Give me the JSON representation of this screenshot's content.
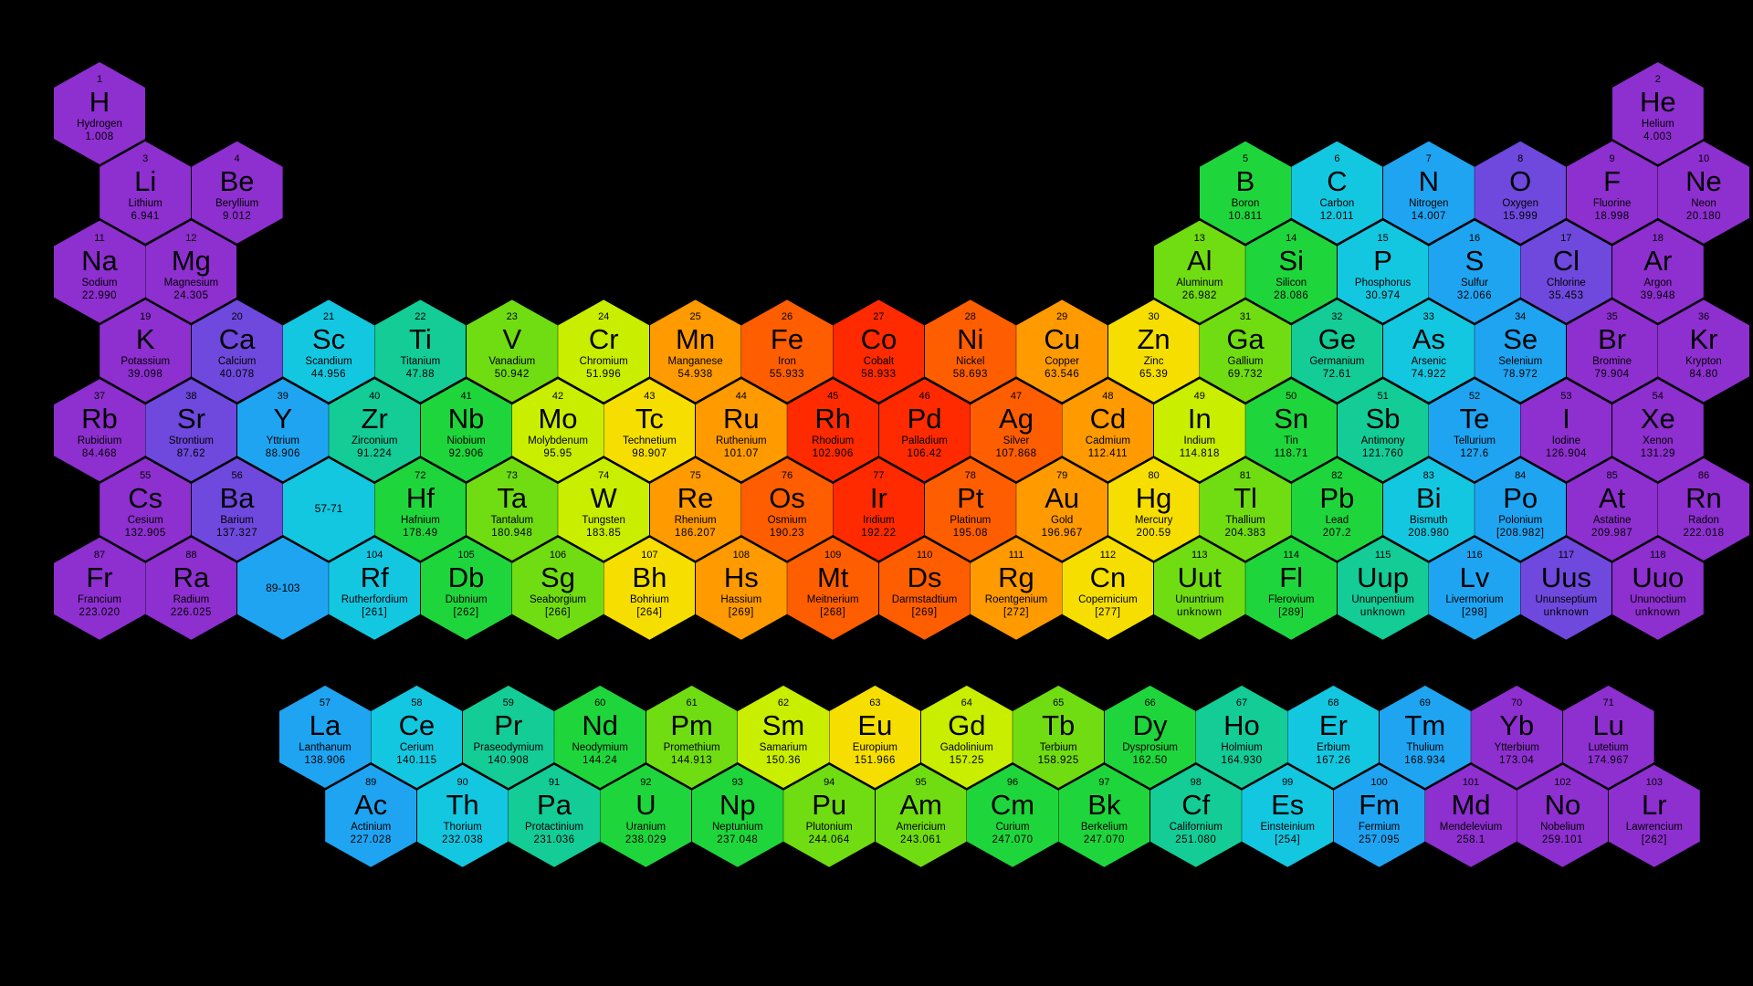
{
  "palette": [
    "#8e2fd0",
    "#6f48dd",
    "#1fa4f2",
    "#14c7e0",
    "#13cc96",
    "#1fd53c",
    "#70dc12",
    "#c9ee00",
    "#f6df00",
    "#ff9a00",
    "#ff5e00",
    "#ff2a00"
  ],
  "main_rows": [
    {
      "offset": 0,
      "cells": [
        {
          "n": "1",
          "s": "H",
          "name": "Hydrogen",
          "m": "1.008",
          "c": 0
        },
        {
          "gap": 16
        },
        {
          "n": "2",
          "s": "He",
          "name": "Helium",
          "m": "4.003",
          "c": 0
        }
      ]
    },
    {
      "offset": 1,
      "cells": [
        {
          "n": "3",
          "s": "Li",
          "name": "Lithium",
          "m": "6.941",
          "c": 0
        },
        {
          "n": "4",
          "s": "Be",
          "name": "Beryllium",
          "m": "9.012",
          "c": 0
        },
        {
          "gap": 10
        },
        {
          "n": "5",
          "s": "B",
          "name": "Boron",
          "m": "10.811",
          "c": 5
        },
        {
          "n": "6",
          "s": "C",
          "name": "Carbon",
          "m": "12.011",
          "c": 3
        },
        {
          "n": "7",
          "s": "N",
          "name": "Nitrogen",
          "m": "14.007",
          "c": 2
        },
        {
          "n": "8",
          "s": "O",
          "name": "Oxygen",
          "m": "15.999",
          "c": 1
        },
        {
          "n": "9",
          "s": "F",
          "name": "Fluorine",
          "m": "18.998",
          "c": 0
        },
        {
          "n": "10",
          "s": "Ne",
          "name": "Neon",
          "m": "20.180",
          "c": 0
        }
      ]
    },
    {
      "offset": 0,
      "cells": [
        {
          "n": "11",
          "s": "Na",
          "name": "Sodium",
          "m": "22.990",
          "c": 0
        },
        {
          "n": "12",
          "s": "Mg",
          "name": "Magnesium",
          "m": "24.305",
          "c": 0
        },
        {
          "gap": 10
        },
        {
          "n": "13",
          "s": "Al",
          "name": "Aluminum",
          "m": "26.982",
          "c": 6
        },
        {
          "n": "14",
          "s": "Si",
          "name": "Silicon",
          "m": "28.086",
          "c": 5
        },
        {
          "n": "15",
          "s": "P",
          "name": "Phosphorus",
          "m": "30.974",
          "c": 3
        },
        {
          "n": "16",
          "s": "S",
          "name": "Sulfur",
          "m": "32.066",
          "c": 2
        },
        {
          "n": "17",
          "s": "Cl",
          "name": "Chlorine",
          "m": "35.453",
          "c": 1
        },
        {
          "n": "18",
          "s": "Ar",
          "name": "Argon",
          "m": "39.948",
          "c": 0
        }
      ]
    },
    {
      "offset": 1,
      "cells": [
        {
          "n": "19",
          "s": "K",
          "name": "Potassium",
          "m": "39.098",
          "c": 0
        },
        {
          "n": "20",
          "s": "Ca",
          "name": "Calcium",
          "m": "40.078",
          "c": 1
        },
        {
          "n": "21",
          "s": "Sc",
          "name": "Scandium",
          "m": "44.956",
          "c": 3
        },
        {
          "n": "22",
          "s": "Ti",
          "name": "Titanium",
          "m": "47.88",
          "c": 4
        },
        {
          "n": "23",
          "s": "V",
          "name": "Vanadium",
          "m": "50.942",
          "c": 6
        },
        {
          "n": "24",
          "s": "Cr",
          "name": "Chromium",
          "m": "51.996",
          "c": 7
        },
        {
          "n": "25",
          "s": "Mn",
          "name": "Manganese",
          "m": "54.938",
          "c": 9
        },
        {
          "n": "26",
          "s": "Fe",
          "name": "Iron",
          "m": "55.933",
          "c": 10
        },
        {
          "n": "27",
          "s": "Co",
          "name": "Cobalt",
          "m": "58.933",
          "c": 11
        },
        {
          "n": "28",
          "s": "Ni",
          "name": "Nickel",
          "m": "58.693",
          "c": 10
        },
        {
          "n": "29",
          "s": "Cu",
          "name": "Copper",
          "m": "63.546",
          "c": 9
        },
        {
          "n": "30",
          "s": "Zn",
          "name": "Zinc",
          "m": "65.39",
          "c": 8
        },
        {
          "n": "31",
          "s": "Ga",
          "name": "Gallium",
          "m": "69.732",
          "c": 6
        },
        {
          "n": "32",
          "s": "Ge",
          "name": "Germanium",
          "m": "72.61",
          "c": 4
        },
        {
          "n": "33",
          "s": "As",
          "name": "Arsenic",
          "m": "74.922",
          "c": 3
        },
        {
          "n": "34",
          "s": "Se",
          "name": "Selenium",
          "m": "78.972",
          "c": 2
        },
        {
          "n": "35",
          "s": "Br",
          "name": "Bromine",
          "m": "79.904",
          "c": 0
        },
        {
          "n": "36",
          "s": "Kr",
          "name": "Krypton",
          "m": "84.80",
          "c": 0
        }
      ]
    },
    {
      "offset": 0,
      "cells": [
        {
          "n": "37",
          "s": "Rb",
          "name": "Rubidium",
          "m": "84.468",
          "c": 0
        },
        {
          "n": "38",
          "s": "Sr",
          "name": "Strontium",
          "m": "87.62",
          "c": 1
        },
        {
          "n": "39",
          "s": "Y",
          "name": "Yttrium",
          "m": "88.906",
          "c": 2
        },
        {
          "n": "40",
          "s": "Zr",
          "name": "Zirconium",
          "m": "91.224",
          "c": 4
        },
        {
          "n": "41",
          "s": "Nb",
          "name": "Niobium",
          "m": "92.906",
          "c": 5
        },
        {
          "n": "42",
          "s": "Mo",
          "name": "Molybdenum",
          "m": "95.95",
          "c": 7
        },
        {
          "n": "43",
          "s": "Tc",
          "name": "Technetium",
          "m": "98.907",
          "c": 8
        },
        {
          "n": "44",
          "s": "Ru",
          "name": "Ruthenium",
          "m": "101.07",
          "c": 9
        },
        {
          "n": "45",
          "s": "Rh",
          "name": "Rhodium",
          "m": "102.906",
          "c": 11
        },
        {
          "n": "46",
          "s": "Pd",
          "name": "Palladium",
          "m": "106.42",
          "c": 11
        },
        {
          "n": "47",
          "s": "Ag",
          "name": "Silver",
          "m": "107.868",
          "c": 10
        },
        {
          "n": "48",
          "s": "Cd",
          "name": "Cadmium",
          "m": "112.411",
          "c": 9
        },
        {
          "n": "49",
          "s": "In",
          "name": "Indium",
          "m": "114.818",
          "c": 7
        },
        {
          "n": "50",
          "s": "Sn",
          "name": "Tin",
          "m": "118.71",
          "c": 5
        },
        {
          "n": "51",
          "s": "Sb",
          "name": "Antimony",
          "m": "121.760",
          "c": 4
        },
        {
          "n": "52",
          "s": "Te",
          "name": "Tellurium",
          "m": "127.6",
          "c": 2
        },
        {
          "n": "53",
          "s": "I",
          "name": "Iodine",
          "m": "126.904",
          "c": 0
        },
        {
          "n": "54",
          "s": "Xe",
          "name": "Xenon",
          "m": "131.29",
          "c": 0
        }
      ]
    },
    {
      "offset": 1,
      "cells": [
        {
          "n": "55",
          "s": "Cs",
          "name": "Cesium",
          "m": "132.905",
          "c": 0
        },
        {
          "n": "56",
          "s": "Ba",
          "name": "Barium",
          "m": "137.327",
          "c": 1
        },
        {
          "label": "57-71",
          "c": 3
        },
        {
          "n": "72",
          "s": "Hf",
          "name": "Hafnium",
          "m": "178.49",
          "c": 5
        },
        {
          "n": "73",
          "s": "Ta",
          "name": "Tantalum",
          "m": "180.948",
          "c": 6
        },
        {
          "n": "74",
          "s": "W",
          "name": "Tungsten",
          "m": "183.85",
          "c": 7
        },
        {
          "n": "75",
          "s": "Re",
          "name": "Rhenium",
          "m": "186.207",
          "c": 9
        },
        {
          "n": "76",
          "s": "Os",
          "name": "Osmium",
          "m": "190.23",
          "c": 10
        },
        {
          "n": "77",
          "s": "Ir",
          "name": "Iridium",
          "m": "192.22",
          "c": 11
        },
        {
          "n": "78",
          "s": "Pt",
          "name": "Platinum",
          "m": "195.08",
          "c": 10
        },
        {
          "n": "79",
          "s": "Au",
          "name": "Gold",
          "m": "196.967",
          "c": 9
        },
        {
          "n": "80",
          "s": "Hg",
          "name": "Mercury",
          "m": "200.59",
          "c": 8
        },
        {
          "n": "81",
          "s": "Tl",
          "name": "Thallium",
          "m": "204.383",
          "c": 6
        },
        {
          "n": "82",
          "s": "Pb",
          "name": "Lead",
          "m": "207.2",
          "c": 5
        },
        {
          "n": "83",
          "s": "Bi",
          "name": "Bismuth",
          "m": "208.980",
          "c": 3
        },
        {
          "n": "84",
          "s": "Po",
          "name": "Polonium",
          "m": "[208.982]",
          "c": 2
        },
        {
          "n": "85",
          "s": "At",
          "name": "Astatine",
          "m": "209.987",
          "c": 0
        },
        {
          "n": "86",
          "s": "Rn",
          "name": "Radon",
          "m": "222.018",
          "c": 0
        }
      ]
    },
    {
      "offset": 0,
      "cells": [
        {
          "n": "87",
          "s": "Fr",
          "name": "Francium",
          "m": "223.020",
          "c": 0
        },
        {
          "n": "88",
          "s": "Ra",
          "name": "Radium",
          "m": "226.025",
          "c": 0
        },
        {
          "label": "89-103",
          "c": 2
        },
        {
          "n": "104",
          "s": "Rf",
          "name": "Rutherfordium",
          "m": "[261]",
          "c": 3
        },
        {
          "n": "105",
          "s": "Db",
          "name": "Dubnium",
          "m": "[262]",
          "c": 5
        },
        {
          "n": "106",
          "s": "Sg",
          "name": "Seaborgium",
          "m": "[266]",
          "c": 6
        },
        {
          "n": "107",
          "s": "Bh",
          "name": "Bohrium",
          "m": "[264]",
          "c": 8
        },
        {
          "n": "108",
          "s": "Hs",
          "name": "Hassium",
          "m": "[269]",
          "c": 9
        },
        {
          "n": "109",
          "s": "Mt",
          "name": "Meitnerium",
          "m": "[268]",
          "c": 10
        },
        {
          "n": "110",
          "s": "Ds",
          "name": "Darmstadtium",
          "m": "[269]",
          "c": 10
        },
        {
          "n": "111",
          "s": "Rg",
          "name": "Roentgenium",
          "m": "[272]",
          "c": 9
        },
        {
          "n": "112",
          "s": "Cn",
          "name": "Copernicium",
          "m": "[277]",
          "c": 8
        },
        {
          "n": "113",
          "s": "Uut",
          "name": "Ununtrium",
          "m": "unknown",
          "c": 6
        },
        {
          "n": "114",
          "s": "Fl",
          "name": "Flerovium",
          "m": "[289]",
          "c": 5
        },
        {
          "n": "115",
          "s": "Uup",
          "name": "Ununpentium",
          "m": "unknown",
          "c": 4
        },
        {
          "n": "116",
          "s": "Lv",
          "name": "Livermorium",
          "m": "[298]",
          "c": 2
        },
        {
          "n": "117",
          "s": "Uus",
          "name": "Ununseptium",
          "m": "unknown",
          "c": 1
        },
        {
          "n": "118",
          "s": "Uuo",
          "name": "Ununoctium",
          "m": "unknown",
          "c": 0
        }
      ]
    }
  ],
  "f_rows": [
    {
      "offset": 0,
      "cells": [
        {
          "n": "57",
          "s": "La",
          "name": "Lanthanum",
          "m": "138.906",
          "c": 2
        },
        {
          "n": "58",
          "s": "Ce",
          "name": "Cerium",
          "m": "140.115",
          "c": 3
        },
        {
          "n": "59",
          "s": "Pr",
          "name": "Praseodymium",
          "m": "140.908",
          "c": 4
        },
        {
          "n": "60",
          "s": "Nd",
          "name": "Neodymium",
          "m": "144.24",
          "c": 5
        },
        {
          "n": "61",
          "s": "Pm",
          "name": "Promethium",
          "m": "144.913",
          "c": 6
        },
        {
          "n": "62",
          "s": "Sm",
          "name": "Samarium",
          "m": "150.36",
          "c": 7
        },
        {
          "n": "63",
          "s": "Eu",
          "name": "Europium",
          "m": "151.966",
          "c": 8
        },
        {
          "n": "64",
          "s": "Gd",
          "name": "Gadolinium",
          "m": "157.25",
          "c": 7
        },
        {
          "n": "65",
          "s": "Tb",
          "name": "Terbium",
          "m": "158.925",
          "c": 6
        },
        {
          "n": "66",
          "s": "Dy",
          "name": "Dysprosium",
          "m": "162.50",
          "c": 5
        },
        {
          "n": "67",
          "s": "Ho",
          "name": "Holmium",
          "m": "164.930",
          "c": 4
        },
        {
          "n": "68",
          "s": "Er",
          "name": "Erbium",
          "m": "167.26",
          "c": 3
        },
        {
          "n": "69",
          "s": "Tm",
          "name": "Thulium",
          "m": "168.934",
          "c": 2
        },
        {
          "n": "70",
          "s": "Yb",
          "name": "Ytterbium",
          "m": "173.04",
          "c": 0
        },
        {
          "n": "71",
          "s": "Lu",
          "name": "Lutetium",
          "m": "174.967",
          "c": 0
        }
      ]
    },
    {
      "offset": 1,
      "cells": [
        {
          "n": "89",
          "s": "Ac",
          "name": "Actinium",
          "m": "227.028",
          "c": 2
        },
        {
          "n": "90",
          "s": "Th",
          "name": "Thorium",
          "m": "232.038",
          "c": 3
        },
        {
          "n": "91",
          "s": "Pa",
          "name": "Protactinium",
          "m": "231.036",
          "c": 4
        },
        {
          "n": "92",
          "s": "U",
          "name": "Uranium",
          "m": "238.029",
          "c": 5
        },
        {
          "n": "93",
          "s": "Np",
          "name": "Neptunium",
          "m": "237.048",
          "c": 5
        },
        {
          "n": "94",
          "s": "Pu",
          "name": "Plutonium",
          "m": "244.064",
          "c": 6
        },
        {
          "n": "95",
          "s": "Am",
          "name": "Americium",
          "m": "243.061",
          "c": 6
        },
        {
          "n": "96",
          "s": "Cm",
          "name": "Curium",
          "m": "247.070",
          "c": 5
        },
        {
          "n": "97",
          "s": "Bk",
          "name": "Berkelium",
          "m": "247.070",
          "c": 5
        },
        {
          "n": "98",
          "s": "Cf",
          "name": "Californium",
          "m": "251.080",
          "c": 4
        },
        {
          "n": "99",
          "s": "Es",
          "name": "Einsteinium",
          "m": "[254]",
          "c": 3
        },
        {
          "n": "100",
          "s": "Fm",
          "name": "Fermium",
          "m": "257.095",
          "c": 2
        },
        {
          "n": "101",
          "s": "Md",
          "name": "Mendelevium",
          "m": "258.1",
          "c": 0
        },
        {
          "n": "102",
          "s": "No",
          "name": "Nobelium",
          "m": "259.101",
          "c": 0
        },
        {
          "n": "103",
          "s": "Lr",
          "name": "Lawrencium",
          "m": "[262]",
          "c": 0
        }
      ]
    }
  ]
}
